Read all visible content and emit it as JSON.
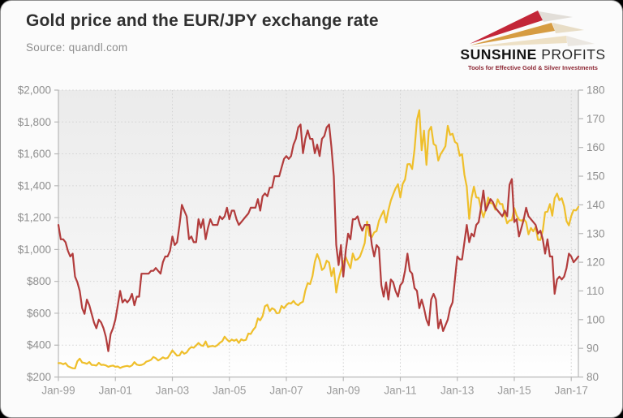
{
  "header": {
    "title": "Gold price and the EUR/JPY exchange rate",
    "source": "Source: quandl.com"
  },
  "logo": {
    "name_bold": "SUNSHINE",
    "name_light": "PROFITS",
    "tagline": "Tools for Effective Gold & Silver Investments",
    "colors": {
      "ray_red": "#C32638",
      "ray_gold": "#D69C42",
      "ray_cream": "#EDE0C5",
      "tagline": "#8C2633"
    }
  },
  "chart_data": {
    "type": "line",
    "title": "Gold price and the EUR/JPY exchange rate",
    "interval": "monthly",
    "x_start": "Jan-1999",
    "x_end": "Apr-2017",
    "x_tick_labels": [
      "Jan-99",
      "Jan-01",
      "Jan-03",
      "Jan-05",
      "Jan-07",
      "Jan-09",
      "Jan-11",
      "Jan-13",
      "Jan-15",
      "Jan-17"
    ],
    "months_between_ticks": 24,
    "grid": true,
    "legend": "none",
    "plot_bg_top": "#EBEBEB",
    "plot_bg_bottom": "#FFFFFF",
    "left_axis": {
      "range": [
        200,
        2000
      ],
      "ticks": [
        "$2,000",
        "$1,800",
        "$1,600",
        "$1,400",
        "$1,200",
        "$1,000",
        "$800",
        "$600",
        "$400",
        "$200"
      ]
    },
    "right_axis": {
      "range": [
        80,
        180
      ],
      "ticks": [
        "180",
        "170",
        "160",
        "150",
        "140",
        "130",
        "120",
        "110",
        "100",
        "90",
        "80"
      ]
    },
    "series": [
      {
        "id": "gold",
        "name": "Gold price (USD)",
        "axis": "left",
        "color": "#EFBF2B",
        "values": [
          287,
          287,
          280,
          287,
          268,
          261,
          255,
          254,
          299,
          315,
          291,
          288,
          283,
          294,
          276,
          275,
          272,
          289,
          276,
          277,
          273,
          264,
          269,
          272,
          264,
          266,
          257,
          263,
          267,
          270,
          265,
          273,
          293,
          278,
          274,
          276,
          282,
          296,
          301,
          308,
          326,
          318,
          304,
          312,
          323,
          316,
          319,
          342,
          367,
          350,
          334,
          336,
          361,
          346,
          354,
          375,
          388,
          384,
          398,
          414,
          399,
          395,
          423,
          388,
          393,
          395,
          391,
          400,
          415,
          425,
          453,
          435,
          422,
          435,
          427,
          435,
          414,
          437,
          429,
          433,
          473,
          470,
          495,
          513,
          568,
          556,
          582,
          644,
          653,
          613,
          632,
          623,
          599,
          603,
          646,
          632,
          650,
          664,
          661,
          677,
          659,
          650,
          665,
          672,
          743,
          789,
          783,
          833,
          923,
          971,
          933,
          871,
          885,
          930,
          918,
          833,
          884,
          730,
          814,
          869,
          919,
          952,
          916,
          883,
          975,
          934,
          939,
          955,
          995,
          1040,
          1175,
          1087,
          1078,
          1108,
          1115,
          1179,
          1215,
          1244,
          1169,
          1246,
          1307,
          1346,
          1383,
          1410,
          1327,
          1411,
          1439,
          1535,
          1536,
          1505,
          1628,
          1813,
          1874,
          1622,
          1746,
          1531,
          1744,
          1770,
          1662,
          1651,
          1558,
          1598,
          1622,
          1648,
          1776,
          1719,
          1726,
          1675,
          1664,
          1588,
          1598,
          1469,
          1394,
          1192,
          1323,
          1394,
          1327,
          1324,
          1253,
          1202,
          1251,
          1326,
          1291,
          1288,
          1250,
          1315,
          1285,
          1285,
          1216,
          1164,
          1182,
          1184,
          1260,
          1213,
          1187,
          1180,
          1191,
          1171,
          1095,
          1135,
          1114,
          1142,
          1061,
          1060,
          1118,
          1234,
          1237,
          1285,
          1212,
          1322,
          1351,
          1309,
          1322,
          1272,
          1178,
          1151,
          1210,
          1248,
          1245,
          1268
        ]
      },
      {
        "id": "eurjpy",
        "name": "EUR/JPY exchange rate",
        "axis": "right",
        "color": "#B23C3C",
        "values": [
          133,
          128,
          128,
          127,
          124,
          122,
          123,
          115,
          113,
          110,
          104,
          102,
          107,
          105,
          102,
          99,
          97,
          100,
          99,
          97,
          94,
          89,
          95,
          97,
          100,
          105,
          110,
          106,
          107,
          106,
          107,
          109,
          105,
          108,
          108,
          116,
          116,
          116,
          116,
          117,
          117,
          118,
          117,
          116,
          120,
          122,
          122,
          124,
          129,
          126,
          127,
          133,
          140,
          138,
          136,
          128,
          129,
          127,
          127,
          135,
          132,
          135,
          128,
          132,
          135,
          133,
          133,
          133,
          136,
          135,
          136,
          139,
          135,
          138,
          138,
          135,
          133,
          134,
          135,
          136,
          137,
          139,
          139,
          139,
          142,
          138,
          143,
          144,
          143,
          146,
          146,
          150,
          150,
          150,
          153,
          156,
          157,
          156,
          157,
          161,
          163,
          167,
          168,
          158,
          163,
          166,
          163,
          163,
          158,
          161,
          157,
          163,
          164,
          167,
          168,
          160,
          150,
          126,
          119,
          126,
          115,
          124,
          130,
          128,
          135,
          135,
          136,
          133,
          131,
          133,
          133,
          133,
          126,
          122,
          126,
          125,
          112,
          108,
          113,
          107,
          114,
          113,
          110,
          108,
          112,
          113,
          117,
          123,
          117,
          116,
          111,
          110,
          104,
          107,
          104,
          100,
          98,
          107,
          109,
          107,
          97,
          100,
          96,
          98,
          100,
          104,
          106,
          114,
          122,
          121,
          121,
          127,
          133,
          127,
          130,
          129,
          133,
          134,
          139,
          145,
          138,
          140,
          142,
          141,
          139,
          138,
          137,
          136,
          138,
          136,
          147,
          149,
          134,
          135,
          129,
          132,
          135,
          139,
          136,
          135,
          134,
          133,
          130,
          131,
          128,
          123,
          128,
          122,
          122,
          109,
          114,
          115,
          114,
          115,
          118,
          123,
          122,
          120,
          121,
          122
        ]
      }
    ]
  }
}
